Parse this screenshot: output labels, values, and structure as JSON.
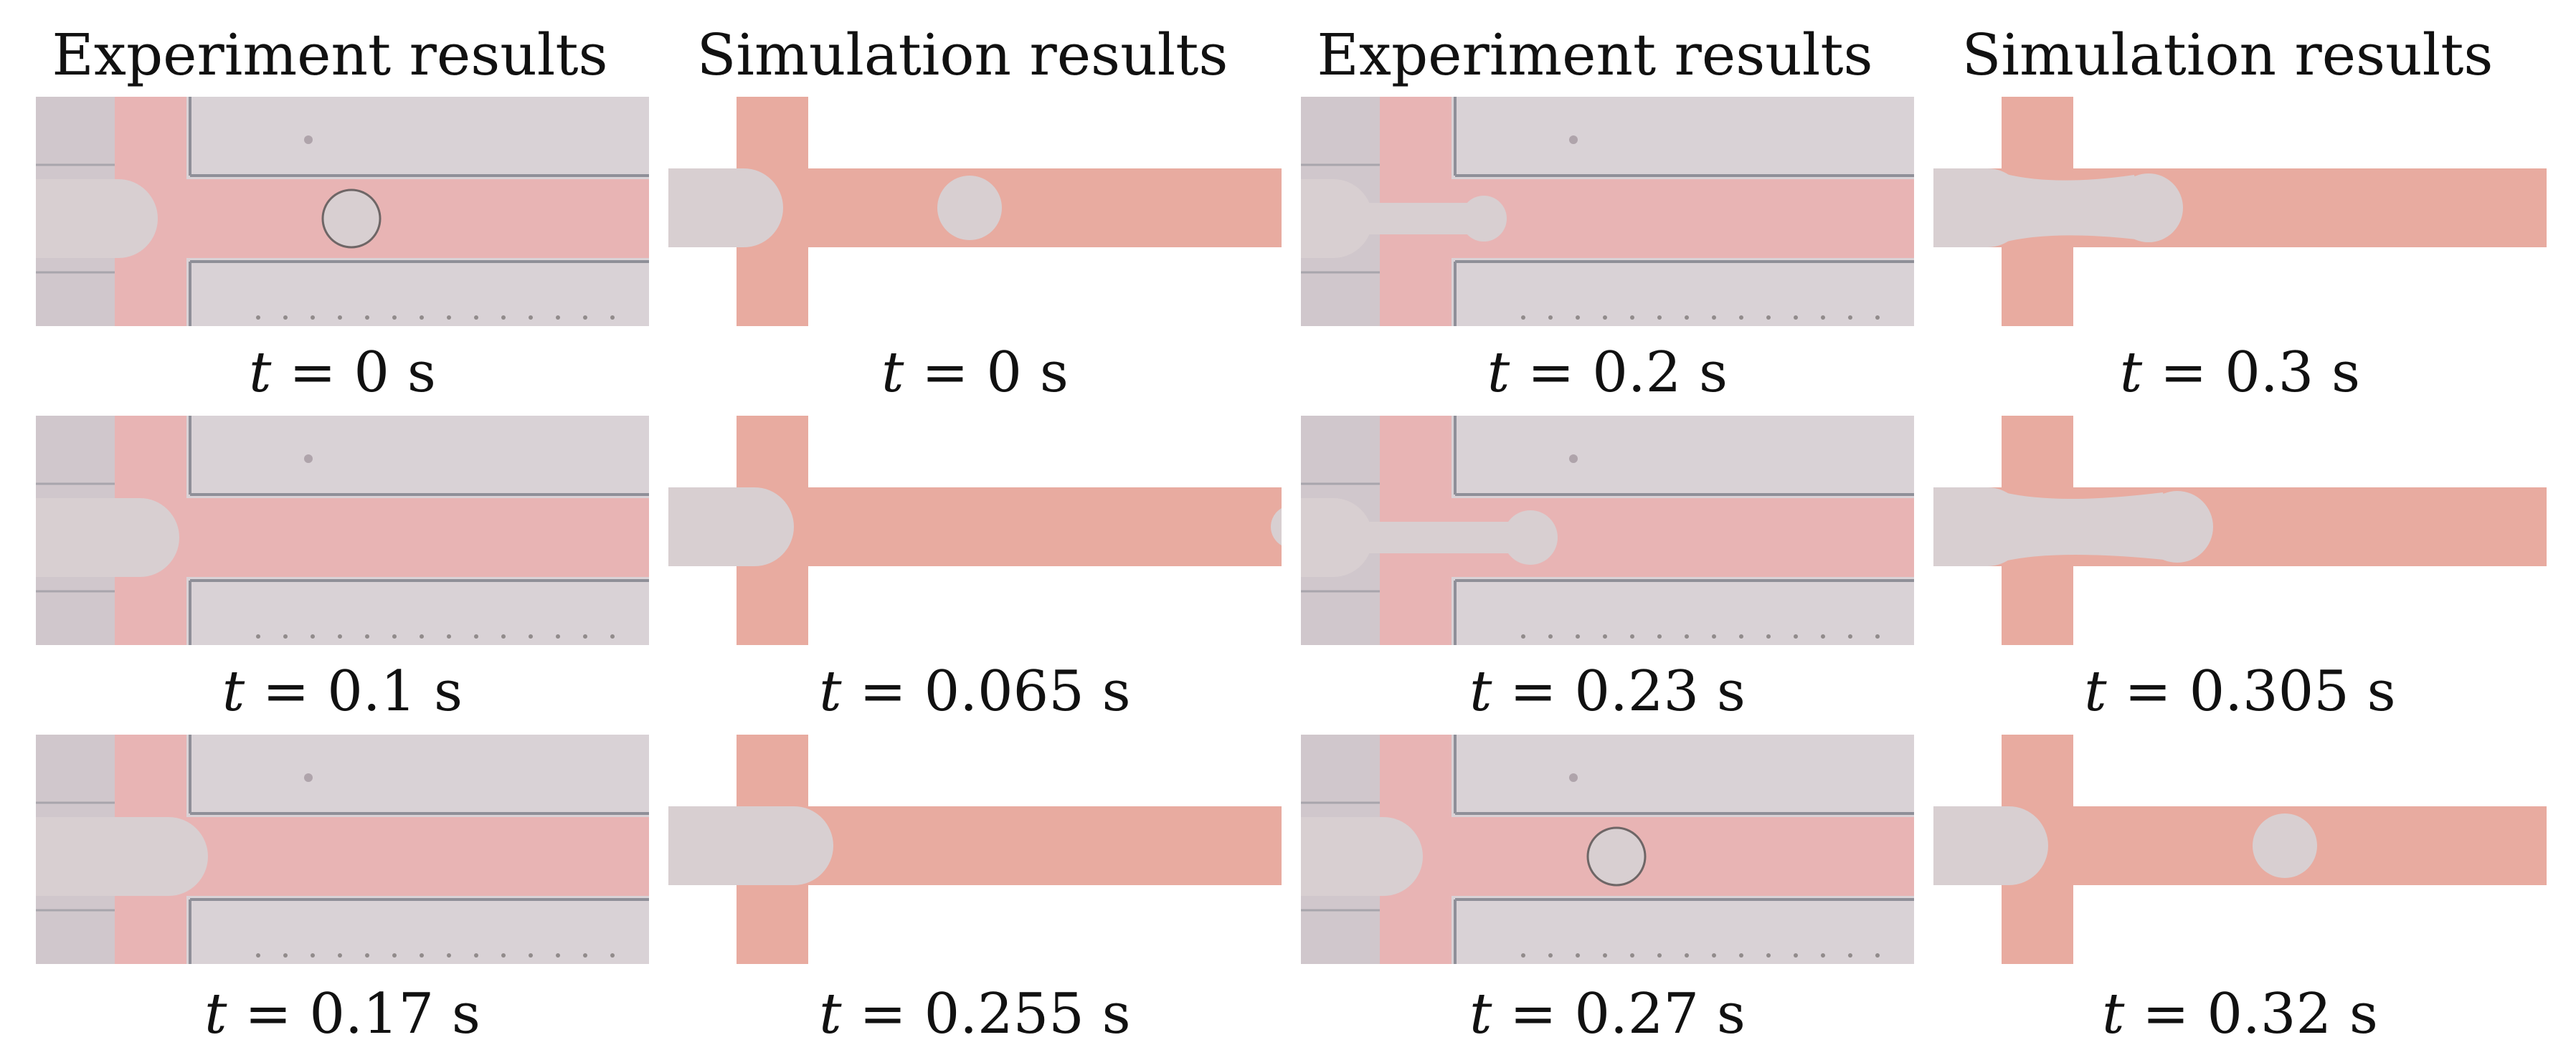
{
  "colors": {
    "channel_pink": "#e8aba0",
    "droplet_gray": "#d8cfd1",
    "photo_background": "#d9d2d6",
    "photo_channel": "#e8b4b4",
    "photo_wall_line": "#8f8f98"
  },
  "headers": [
    "Experiment results",
    "Simulation results",
    "Experiment results",
    "Simulation results"
  ],
  "caption_variable": "t",
  "caption_equals": " = ",
  "caption_unit": " s",
  "columns": [
    {
      "type": "experiment",
      "times": [
        "0",
        "0.1",
        "0.17"
      ]
    },
    {
      "type": "simulation",
      "times": [
        "0",
        "0.065",
        "0.255"
      ]
    },
    {
      "type": "experiment",
      "times": [
        "0.2",
        "0.23",
        "0.27"
      ]
    },
    {
      "type": "simulation",
      "times": [
        "0.3",
        "0.305",
        "0.32"
      ]
    }
  ],
  "panel_image_names": [
    [
      "experiment-frame-t0-image",
      "experiment-frame-t0.1-image",
      "experiment-frame-t0.17-image"
    ],
    [
      "simulation-frame-t0-image",
      "simulation-frame-t0.065-image",
      "simulation-frame-t0.255-image"
    ],
    [
      "experiment-frame-t0.2-image",
      "experiment-frame-t0.23-image",
      "experiment-frame-t0.27-image"
    ],
    [
      "simulation-frame-t0.3-image",
      "simulation-frame-t0.305-image",
      "simulation-frame-t0.32-image"
    ]
  ]
}
